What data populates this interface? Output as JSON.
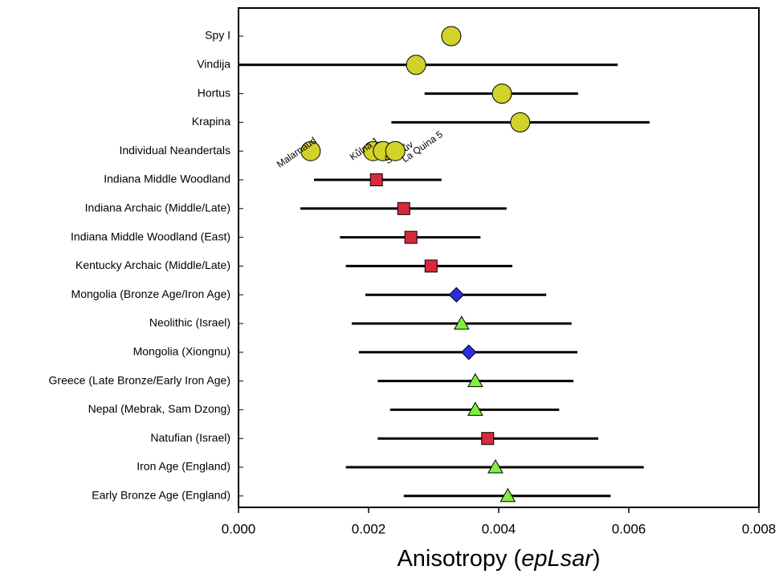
{
  "chart_data": {
    "type": "dot",
    "xlabel_parts": [
      "Anisotropy (",
      "epLsar",
      ")"
    ],
    "xlim": [
      0,
      0.008
    ],
    "xticks": [
      {
        "value": 0,
        "label": "0.000"
      },
      {
        "value": 0.002,
        "label": "0.002"
      },
      {
        "value": 0.004,
        "label": "0.004"
      },
      {
        "value": 0.006,
        "label": "0.006"
      },
      {
        "value": 0.008,
        "label": "0.008"
      }
    ],
    "markers": {
      "circle": {
        "color": "#d2d22a"
      },
      "square": {
        "color": "#d9283a"
      },
      "diamond": {
        "color": "#2c2ce0"
      },
      "triangle": {
        "color": "#80f040"
      }
    },
    "rows": [
      {
        "label": "Spy I",
        "marker": "circle",
        "value": 0.00327,
        "low": null,
        "high": null
      },
      {
        "label": "Vindija",
        "marker": "circle",
        "value": 0.00273,
        "low": 0,
        "high": 0.00583
      },
      {
        "label": "Hortus",
        "marker": "circle",
        "value": 0.00405,
        "low": 0.00286,
        "high": 0.00522
      },
      {
        "label": "Krapina",
        "marker": "circle",
        "value": 0.00433,
        "low": 0.00235,
        "high": 0.00632
      },
      {
        "label": "Individual Neandertals",
        "marker": "circle",
        "value": null,
        "low": null,
        "high": null,
        "points": [
          {
            "name": "Malarnaud",
            "value": 0.00111
          },
          {
            "name": "Kůlna 1",
            "value": 0.00207
          },
          {
            "name": "Švédův",
            "value": 0.00222
          },
          {
            "name": "La Quina 5",
            "value": 0.00241
          }
        ]
      },
      {
        "label": "Indiana Middle Woodland",
        "marker": "square",
        "value": 0.00212,
        "low": 0.00116,
        "high": 0.00312
      },
      {
        "label": "Indiana Archaic (Middle/Late)",
        "marker": "square",
        "value": 0.00254,
        "low": 0.00095,
        "high": 0.00412
      },
      {
        "label": "Indiana Middle Woodland (East)",
        "marker": "square",
        "value": 0.00265,
        "low": 0.00156,
        "high": 0.00372
      },
      {
        "label": "Kentucky Archaic (Middle/Late)",
        "marker": "square",
        "value": 0.00296,
        "low": 0.00165,
        "high": 0.00421
      },
      {
        "label": "Mongolia (Bronze Age/Iron Age)",
        "marker": "diamond",
        "value": 0.00335,
        "low": 0.00195,
        "high": 0.00473
      },
      {
        "label": "Neolithic (Israel)",
        "marker": "triangle",
        "value": 0.00343,
        "low": 0.00174,
        "high": 0.00512
      },
      {
        "label": "Mongolia (Xiongnu)",
        "marker": "diamond",
        "value": 0.00354,
        "low": 0.00185,
        "high": 0.00521
      },
      {
        "label": "Greece (Late Bronze/Early Iron Age)",
        "marker": "triangle",
        "value": 0.00364,
        "low": 0.00214,
        "high": 0.00515
      },
      {
        "label": "Nepal (Mebrak, Sam Dzong)",
        "marker": "triangle",
        "value": 0.00364,
        "low": 0.00233,
        "high": 0.00493
      },
      {
        "label": "Natufian (Israel)",
        "marker": "square",
        "value": 0.00383,
        "low": 0.00214,
        "high": 0.00553
      },
      {
        "label": "Iron Age (England)",
        "marker": "triangle",
        "value": 0.00395,
        "low": 0.00165,
        "high": 0.00623
      },
      {
        "label": "Early Bronze Age (England)",
        "marker": "triangle",
        "value": 0.00414,
        "low": 0.00254,
        "high": 0.00572
      }
    ]
  }
}
